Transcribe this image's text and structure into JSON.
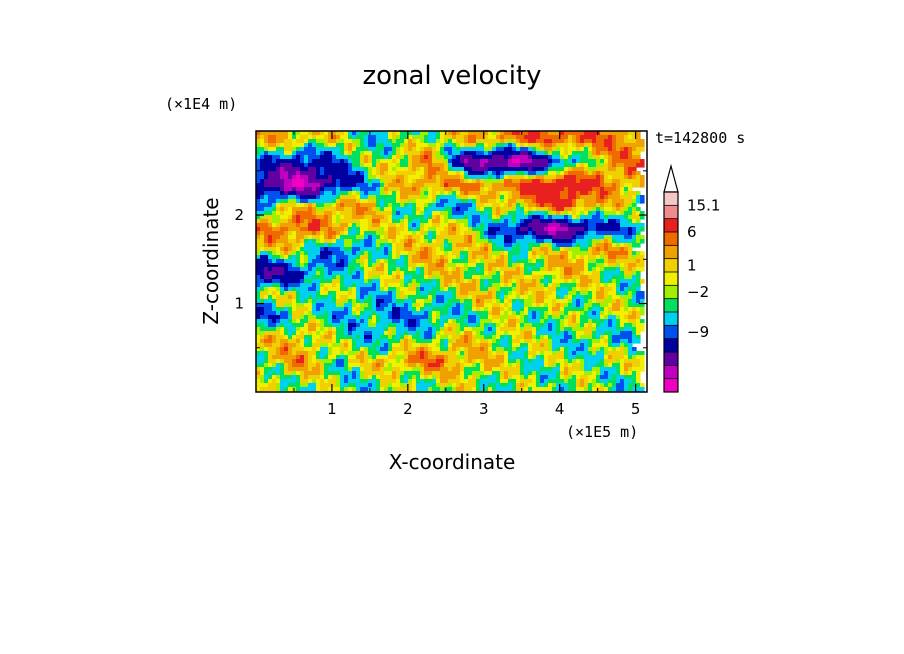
{
  "chart_data": {
    "type": "heatmap",
    "title": "zonal velocity",
    "xlabel": "X-coordinate",
    "ylabel": "Z-coordinate",
    "x_unit": "(×1E5 m)",
    "y_unit": "(×1E4 m)",
    "time_label": "t=142800 s",
    "xlim": [
      0,
      5.15
    ],
    "ylim": [
      0,
      2.95
    ],
    "x_ticks": [
      1,
      2,
      3,
      4,
      5
    ],
    "y_ticks": [
      1,
      2
    ],
    "colorbar": {
      "levels_top_to_bottom": [
        "#f5c8c8",
        "#f08c8c",
        "#e82020",
        "#f06a00",
        "#f0a000",
        "#f0d000",
        "#f0f000",
        "#a0f000",
        "#00e060",
        "#00d0f0",
        "#0050f0",
        "#0000a0",
        "#6000a0",
        "#c000c0",
        "#f000c0"
      ],
      "labels": [
        {
          "value": "15.1",
          "level": 1
        },
        {
          "value": "6",
          "level": 3
        },
        {
          "value": "1",
          "level": 5.5
        },
        {
          "value": "−2",
          "level": 7.5
        },
        {
          "value": "−9",
          "level": 10.5
        }
      ],
      "extend": "max"
    },
    "field_bands": [
      {
        "y": 2.85,
        "dir": 1.0,
        "vals": [
          3,
          3,
          1,
          -1,
          1,
          3,
          5,
          6,
          5,
          4
        ]
      },
      {
        "y": 2.6,
        "dir": -1.0,
        "vals": [
          -2,
          -6,
          -2,
          2,
          4,
          -9,
          -12,
          -4,
          3,
          5
        ]
      },
      {
        "y": 2.35,
        "dir": 1.0,
        "vals": [
          -6,
          -12,
          -5,
          1,
          5,
          4,
          6,
          10,
          5,
          3
        ]
      },
      {
        "y": 2.1,
        "dir": -1.0,
        "vals": [
          -1,
          2,
          4,
          2,
          -2,
          -1,
          3,
          6,
          3,
          -1
        ]
      },
      {
        "y": 1.85,
        "dir": 1.0,
        "vals": [
          4,
          6,
          3,
          1,
          2,
          1,
          -6,
          -11,
          -4,
          -1
        ]
      },
      {
        "y": 1.6,
        "dir": -1.0,
        "vals": [
          2,
          1,
          -4,
          1,
          3,
          2,
          1,
          2,
          4,
          2
        ]
      },
      {
        "y": 1.35,
        "dir": 1.0,
        "vals": [
          -8,
          -4,
          0,
          1,
          2,
          2,
          1,
          3,
          1,
          0
        ]
      },
      {
        "y": 1.1,
        "dir": -1.0,
        "vals": [
          1,
          1,
          0,
          -1,
          0,
          2,
          2,
          1,
          1,
          0
        ]
      },
      {
        "y": 0.85,
        "dir": 1.0,
        "vals": [
          -4,
          0,
          -1,
          -2,
          -2,
          0,
          1,
          0,
          1,
          1
        ]
      },
      {
        "y": 0.6,
        "dir": -1.0,
        "vals": [
          2,
          3,
          0,
          -1,
          1,
          2,
          1,
          0,
          -1,
          -1
        ]
      },
      {
        "y": 0.35,
        "dir": 1.0,
        "vals": [
          1,
          4,
          0,
          3,
          5,
          3,
          1,
          0,
          1,
          1
        ]
      },
      {
        "y": 0.1,
        "dir": -1.0,
        "vals": [
          0,
          1,
          0,
          0,
          1,
          1,
          0,
          1,
          0,
          0
        ]
      }
    ],
    "thresholds": [
      -12,
      -9,
      -6,
      -3.5,
      -2,
      -0.5,
      0.5,
      1,
      1.8,
      3,
      4.5,
      6,
      10,
      15.1
    ],
    "colors_low_to_high": [
      "#f000c0",
      "#c000c0",
      "#6000a0",
      "#0000a0",
      "#0050f0",
      "#00d0f0",
      "#00e060",
      "#a0f000",
      "#f0f000",
      "#f0d000",
      "#f0a000",
      "#f06a00",
      "#e82020",
      "#f08c8c",
      "#f5c8c8"
    ]
  }
}
